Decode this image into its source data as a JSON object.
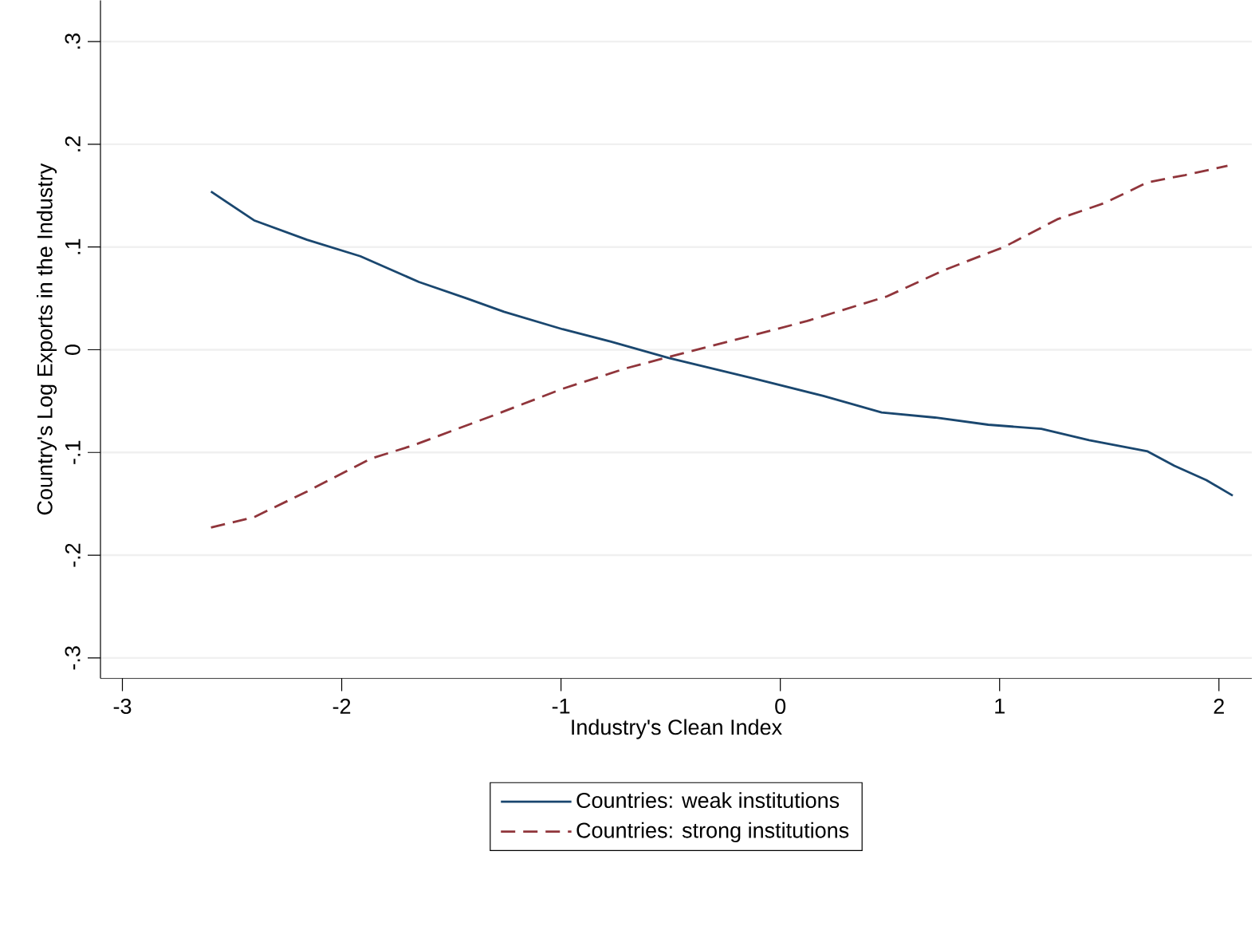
{
  "chart_data": {
    "type": "line",
    "xlabel": "Industry's Clean Index",
    "ylabel": "Country's Log Exports in the Industry",
    "xlim": [
      -3.1,
      2.15
    ],
    "ylim": [
      -0.32,
      0.34
    ],
    "xticks": [
      -3,
      -2,
      -1,
      0,
      1,
      2
    ],
    "yticks": [
      {
        "value": -0.3,
        "label": "-.3"
      },
      {
        "value": -0.2,
        "label": "-.2"
      },
      {
        "value": -0.1,
        "label": "-.1"
      },
      0,
      {
        "value": 0.1,
        "label": ".1"
      },
      {
        "value": 0.2,
        "label": ".2"
      },
      {
        "value": 0.3,
        "label": ".3"
      }
    ],
    "grid": "y",
    "legend": "bottom",
    "series": [
      {
        "name": "Countries: weak institutions",
        "color": "#1a476f",
        "line_style": "solid",
        "x": [
          -2.596,
          -2.4,
          -2.158,
          -1.915,
          -1.648,
          -1.43,
          -1.26,
          -0.993,
          -0.775,
          -0.508,
          -0.12,
          0.196,
          0.462,
          0.705,
          0.948,
          1.19,
          1.408,
          1.675,
          1.797,
          1.943,
          2.063
        ],
        "values": [
          0.154,
          0.126,
          0.107,
          0.091,
          0.066,
          0.05,
          0.037,
          0.02,
          0.008,
          -0.008,
          -0.028,
          -0.045,
          -0.061,
          -0.066,
          -0.073,
          -0.077,
          -0.088,
          -0.099,
          -0.113,
          -0.127,
          -0.142
        ]
      },
      {
        "name": "Countries: strong institutions",
        "color": "#90353b",
        "line_style": "dashed",
        "x": [
          -2.596,
          -2.4,
          -2.158,
          -1.867,
          -1.673,
          -1.309,
          -0.993,
          -0.702,
          -0.508,
          -0.144,
          0.123,
          0.487,
          0.753,
          1.02,
          1.263,
          1.481,
          1.675,
          1.845,
          2.039
        ],
        "values": [
          -0.173,
          -0.163,
          -0.138,
          -0.106,
          -0.093,
          -0.064,
          -0.038,
          -0.018,
          -0.007,
          0.013,
          0.028,
          0.052,
          0.078,
          0.1,
          0.127,
          0.143,
          0.163,
          0.17,
          0.179
        ]
      }
    ]
  }
}
